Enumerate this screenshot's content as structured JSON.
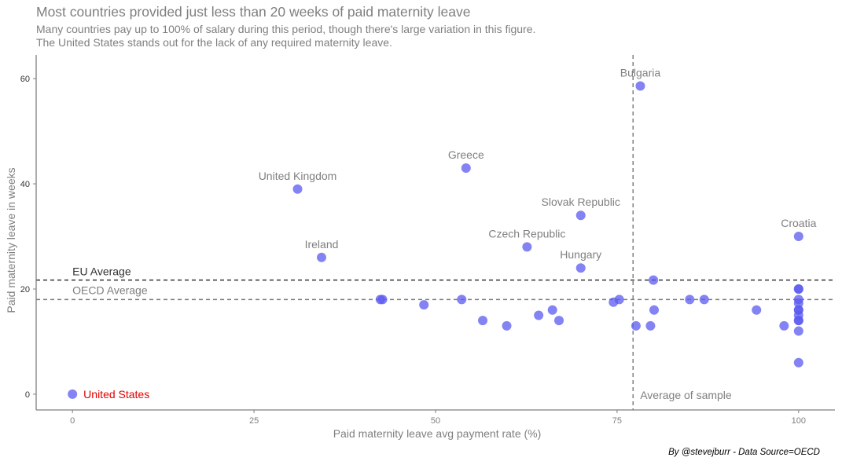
{
  "header": {
    "title": "Most countries provided just less than 20 weeks of paid maternity leave",
    "subtitle_line1": "Many countries pay up to 100% of salary during this period, though there's large variation in this figure.",
    "subtitle_line2": "The United States stands out for the lack of any required maternity leave."
  },
  "caption": "By @stevejburr - Data Source=OECD",
  "chart_data": {
    "type": "scatter",
    "xlabel": "Paid maternity leave avg payment rate (%)",
    "ylabel": "Paid maternity leave in weeks",
    "xlim": [
      -5,
      105
    ],
    "ylim": [
      -3,
      64.5
    ],
    "xticks": [
      0,
      25,
      50,
      75,
      100
    ],
    "yticks": [
      0,
      20,
      40,
      60
    ],
    "grid": false,
    "colors": {
      "point": "#5a5af0",
      "point_opacity": 0.75,
      "highlight_label": "#e00000",
      "label": "#7f7f7f",
      "eu_line": "#333333",
      "oecd_line": "#7f7f7f",
      "sample_line": "#7f7f7f"
    },
    "reference_lines": {
      "eu_average": {
        "label": "EU Average",
        "y": 21.7
      },
      "oecd_average": {
        "label": "OECD Average",
        "y": 18
      },
      "sample_average": {
        "label": "Average of sample",
        "x": 77.2
      }
    },
    "labeled_points": [
      {
        "label": "United States",
        "x": 0,
        "y": 0,
        "highlight": true
      },
      {
        "label": "Bulgaria",
        "x": 78.2,
        "y": 58.6
      },
      {
        "label": "Greece",
        "x": 54.2,
        "y": 43
      },
      {
        "label": "United Kingdom",
        "x": 31,
        "y": 39
      },
      {
        "label": "Slovak Republic",
        "x": 70,
        "y": 34
      },
      {
        "label": "Croatia",
        "x": 100,
        "y": 30
      },
      {
        "label": "Czech Republic",
        "x": 62.6,
        "y": 28
      },
      {
        "label": "Ireland",
        "x": 34.3,
        "y": 26
      },
      {
        "label": "Hungary",
        "x": 70,
        "y": 24
      }
    ],
    "points": [
      {
        "x": 42.4,
        "y": 18
      },
      {
        "x": 42.7,
        "y": 18
      },
      {
        "x": 48.4,
        "y": 17
      },
      {
        "x": 53.6,
        "y": 18
      },
      {
        "x": 56.5,
        "y": 14
      },
      {
        "x": 59.8,
        "y": 13
      },
      {
        "x": 64.2,
        "y": 15
      },
      {
        "x": 66.1,
        "y": 16
      },
      {
        "x": 67,
        "y": 14
      },
      {
        "x": 74.5,
        "y": 17.5
      },
      {
        "x": 75.3,
        "y": 18
      },
      {
        "x": 77.6,
        "y": 13
      },
      {
        "x": 79.6,
        "y": 13
      },
      {
        "x": 80,
        "y": 21.7
      },
      {
        "x": 80.1,
        "y": 16
      },
      {
        "x": 85,
        "y": 18
      },
      {
        "x": 87,
        "y": 18
      },
      {
        "x": 94.2,
        "y": 16
      },
      {
        "x": 98,
        "y": 13
      },
      {
        "x": 100,
        "y": 20
      },
      {
        "x": 100,
        "y": 20
      },
      {
        "x": 100,
        "y": 18
      },
      {
        "x": 100,
        "y": 17.3
      },
      {
        "x": 100,
        "y": 16
      },
      {
        "x": 100,
        "y": 16
      },
      {
        "x": 100,
        "y": 15
      },
      {
        "x": 100,
        "y": 14
      },
      {
        "x": 100,
        "y": 14
      },
      {
        "x": 100,
        "y": 12
      },
      {
        "x": 100,
        "y": 6
      }
    ]
  }
}
